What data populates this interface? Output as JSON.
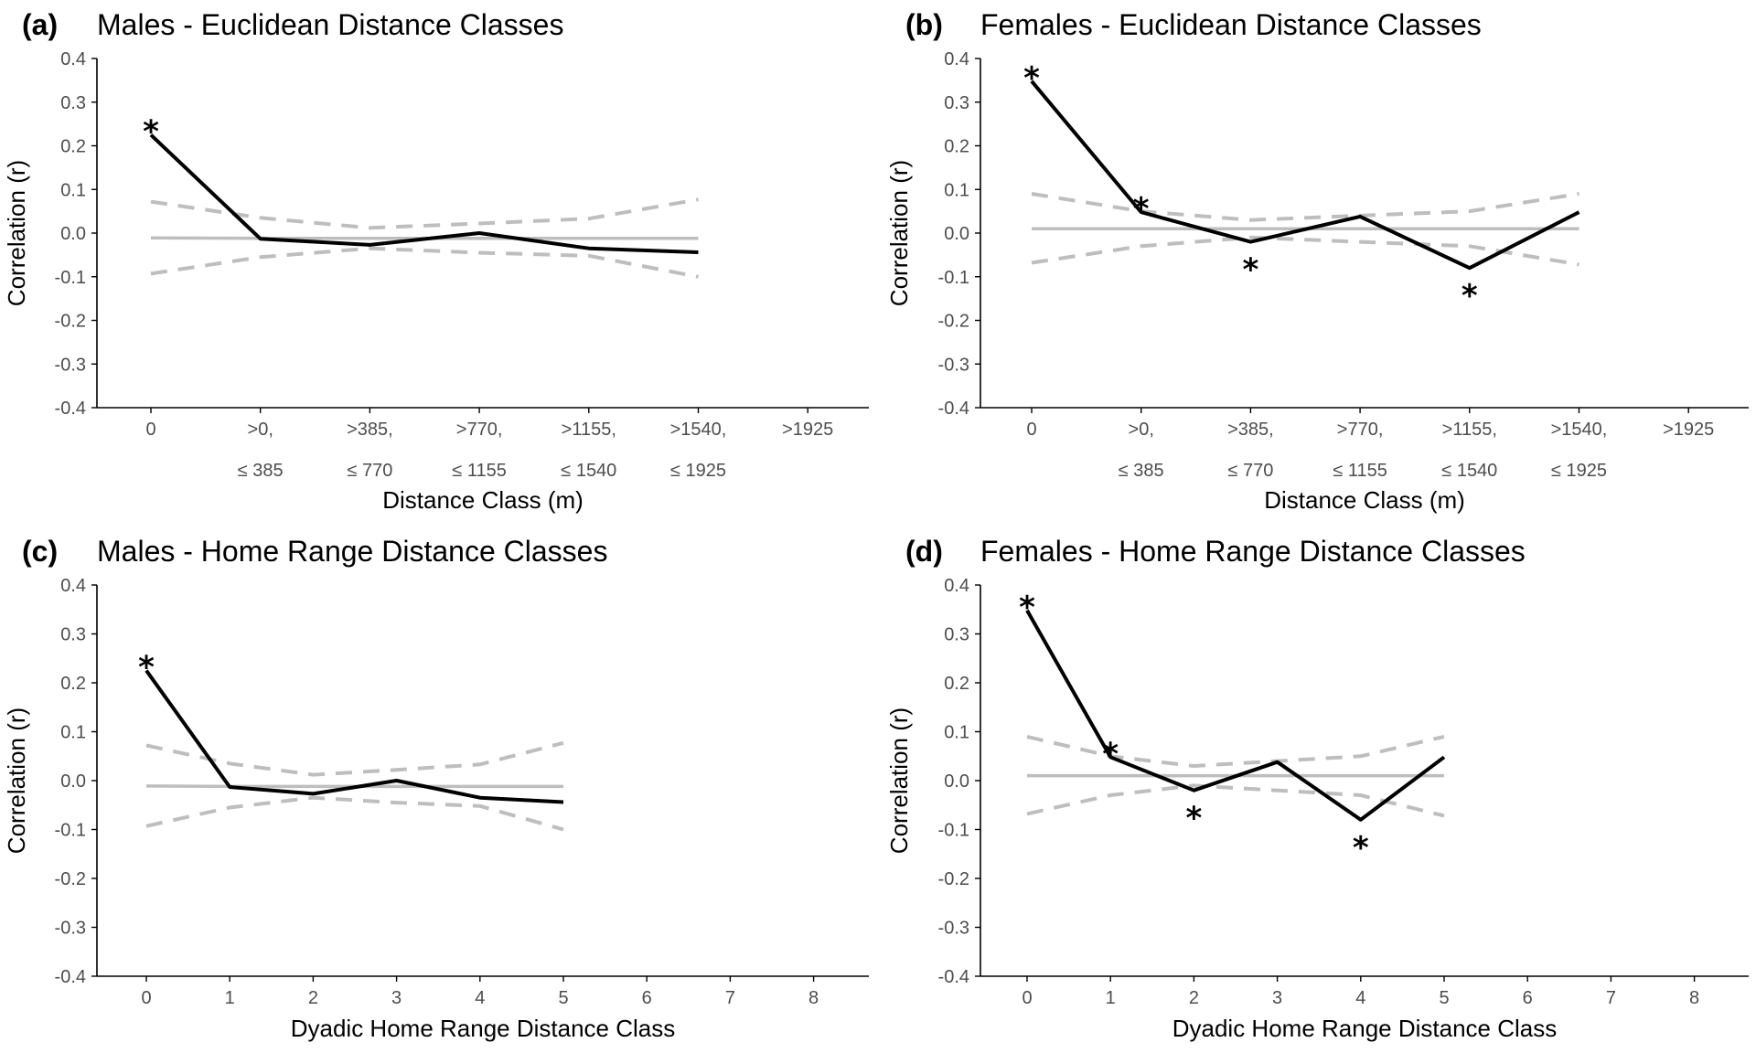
{
  "chart_data": [
    {
      "type": "line",
      "panel": "(a)",
      "title": "Males - Euclidean Distance Classes",
      "xlabel": "Distance Class (m)",
      "ylabel": "Correlation (r)",
      "ylim": [
        -0.4,
        0.4
      ],
      "yticks": [
        "-0.4",
        "-0.3",
        "-0.2",
        "-0.1",
        "0.0",
        "0.1",
        "0.2",
        "0.3",
        "0.4"
      ],
      "x_tick_labels": [
        [
          "0"
        ],
        [
          ">0,",
          "≤ 385"
        ],
        [
          ">385,",
          "≤ 770"
        ],
        [
          ">770,",
          "≤ 1155"
        ],
        [
          ">1155,",
          "≤ 1540"
        ],
        [
          ">1540,",
          "≤ 1925"
        ],
        [
          ">1925"
        ]
      ],
      "grid": false,
      "series": [
        {
          "role": "observed",
          "values": [
            0.225,
            -0.013,
            -0.027,
            0.0,
            -0.035,
            -0.044
          ],
          "significant": [
            0
          ]
        },
        {
          "role": "null-mean",
          "values": [
            -0.011,
            -0.012,
            -0.012,
            -0.012,
            -0.012,
            -0.012
          ]
        },
        {
          "role": "upper-ci",
          "values": [
            0.072,
            0.035,
            0.012,
            0.022,
            0.033,
            0.077
          ]
        },
        {
          "role": "lower-ci",
          "values": [
            -0.093,
            -0.055,
            -0.035,
            -0.045,
            -0.052,
            -0.1
          ]
        }
      ]
    },
    {
      "type": "line",
      "panel": "(b)",
      "title": "Females - Euclidean Distance Classes",
      "xlabel": "Distance Class (m)",
      "ylabel": "Correlation (r)",
      "ylim": [
        -0.4,
        0.4
      ],
      "yticks": [
        "-0.4",
        "-0.3",
        "-0.2",
        "-0.1",
        "0.0",
        "0.1",
        "0.2",
        "0.3",
        "0.4"
      ],
      "x_tick_labels": [
        [
          "0"
        ],
        [
          ">0,",
          "≤ 385"
        ],
        [
          ">385,",
          "≤ 770"
        ],
        [
          ">770,",
          "≤ 1155"
        ],
        [
          ">1155,",
          "≤ 1540"
        ],
        [
          ">1540,",
          "≤ 1925"
        ],
        [
          ">1925"
        ]
      ],
      "grid": false,
      "series": [
        {
          "role": "observed",
          "values": [
            0.348,
            0.048,
            -0.02,
            0.038,
            -0.08,
            0.048
          ],
          "significant": [
            0,
            1,
            2,
            4
          ]
        },
        {
          "role": "null-mean",
          "values": [
            0.01,
            0.01,
            0.01,
            0.01,
            0.01,
            0.01
          ]
        },
        {
          "role": "upper-ci",
          "values": [
            0.09,
            0.05,
            0.03,
            0.04,
            0.05,
            0.09
          ]
        },
        {
          "role": "lower-ci",
          "values": [
            -0.068,
            -0.03,
            -0.01,
            -0.02,
            -0.03,
            -0.072
          ]
        }
      ]
    },
    {
      "type": "line",
      "panel": "(c)",
      "title": "Males - Home Range Distance Classes",
      "xlabel": "Dyadic Home Range Distance Class",
      "ylabel": "Correlation (r)",
      "ylim": [
        -0.4,
        0.4
      ],
      "yticks": [
        "-0.4",
        "-0.3",
        "-0.2",
        "-0.1",
        "0.0",
        "0.1",
        "0.2",
        "0.3",
        "0.4"
      ],
      "x_tick_labels": [
        [
          "0"
        ],
        [
          "1"
        ],
        [
          "2"
        ],
        [
          "3"
        ],
        [
          "4"
        ],
        [
          "5"
        ],
        [
          "6"
        ],
        [
          "7"
        ],
        [
          "8"
        ]
      ],
      "grid": false,
      "series": [
        {
          "role": "observed",
          "values": [
            0.225,
            -0.013,
            -0.027,
            0.0,
            -0.035,
            -0.044
          ],
          "significant": [
            0
          ]
        },
        {
          "role": "null-mean",
          "values": [
            -0.011,
            -0.012,
            -0.012,
            -0.012,
            -0.012,
            -0.012
          ]
        },
        {
          "role": "upper-ci",
          "values": [
            0.072,
            0.035,
            0.012,
            0.022,
            0.033,
            0.077
          ]
        },
        {
          "role": "lower-ci",
          "values": [
            -0.093,
            -0.055,
            -0.035,
            -0.045,
            -0.052,
            -0.1
          ]
        }
      ]
    },
    {
      "type": "line",
      "panel": "(d)",
      "title": "Females - Home Range Distance Classes",
      "xlabel": "Dyadic Home Range Distance Class",
      "ylabel": "Correlation (r)",
      "ylim": [
        -0.4,
        0.4
      ],
      "yticks": [
        "-0.4",
        "-0.3",
        "-0.2",
        "-0.1",
        "0.0",
        "0.1",
        "0.2",
        "0.3",
        "0.4"
      ],
      "x_tick_labels": [
        [
          "0"
        ],
        [
          "1"
        ],
        [
          "2"
        ],
        [
          "3"
        ],
        [
          "4"
        ],
        [
          "5"
        ],
        [
          "6"
        ],
        [
          "7"
        ],
        [
          "8"
        ]
      ],
      "grid": false,
      "series": [
        {
          "role": "observed",
          "values": [
            0.348,
            0.048,
            -0.02,
            0.038,
            -0.08,
            0.048
          ],
          "significant": [
            0,
            1,
            2,
            4
          ]
        },
        {
          "role": "null-mean",
          "values": [
            0.01,
            0.01,
            0.01,
            0.01,
            0.01,
            0.01
          ]
        },
        {
          "role": "upper-ci",
          "values": [
            0.09,
            0.05,
            0.03,
            0.04,
            0.05,
            0.09
          ]
        },
        {
          "role": "lower-ci",
          "values": [
            -0.068,
            -0.03,
            -0.01,
            -0.02,
            -0.03,
            -0.072
          ]
        }
      ]
    }
  ],
  "colors": {
    "observed": "#000000",
    "null_mean": "#bebebe",
    "ci": "#bebebe",
    "axis": "#000000",
    "tick_text": "#4d4d4d"
  },
  "significance_marker": "*"
}
